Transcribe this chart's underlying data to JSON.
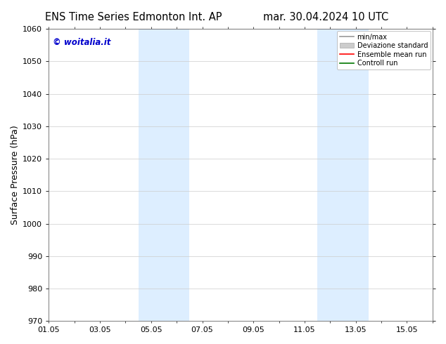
{
  "title_left": "ENS Time Series Edmonton Int. AP",
  "title_right": "mar. 30.04.2024 10 UTC",
  "ylabel": "Surface Pressure (hPa)",
  "ylim": [
    970,
    1060
  ],
  "yticks": [
    970,
    980,
    990,
    1000,
    1010,
    1020,
    1030,
    1040,
    1050,
    1060
  ],
  "xlim": [
    0,
    15
  ],
  "xtick_labels": [
    "01.05",
    "03.05",
    "05.05",
    "07.05",
    "09.05",
    "11.05",
    "13.05",
    "15.05"
  ],
  "xtick_positions": [
    0,
    2,
    4,
    6,
    8,
    10,
    12,
    14
  ],
  "shade_bands": [
    {
      "start": 3.5,
      "end": 5.5,
      "color": "#ddeeff"
    },
    {
      "start": 10.5,
      "end": 12.5,
      "color": "#ddeeff"
    }
  ],
  "watermark": "© woitalia.it",
  "watermark_color": "#0000cc",
  "legend_items": [
    {
      "label": "min/max",
      "color": "#999999",
      "lw": 1.2,
      "type": "line"
    },
    {
      "label": "Deviazione standard",
      "color": "#cccccc",
      "lw": 5,
      "type": "patch"
    },
    {
      "label": "Ensemble mean run",
      "color": "#ff0000",
      "lw": 1.2,
      "type": "line"
    },
    {
      "label": "Controll run",
      "color": "#007700",
      "lw": 1.2,
      "type": "line"
    }
  ],
  "background_color": "#ffffff",
  "grid_color": "#cccccc",
  "title_fontsize": 10.5,
  "ylabel_fontsize": 9,
  "tick_fontsize": 8,
  "watermark_fontsize": 8.5
}
